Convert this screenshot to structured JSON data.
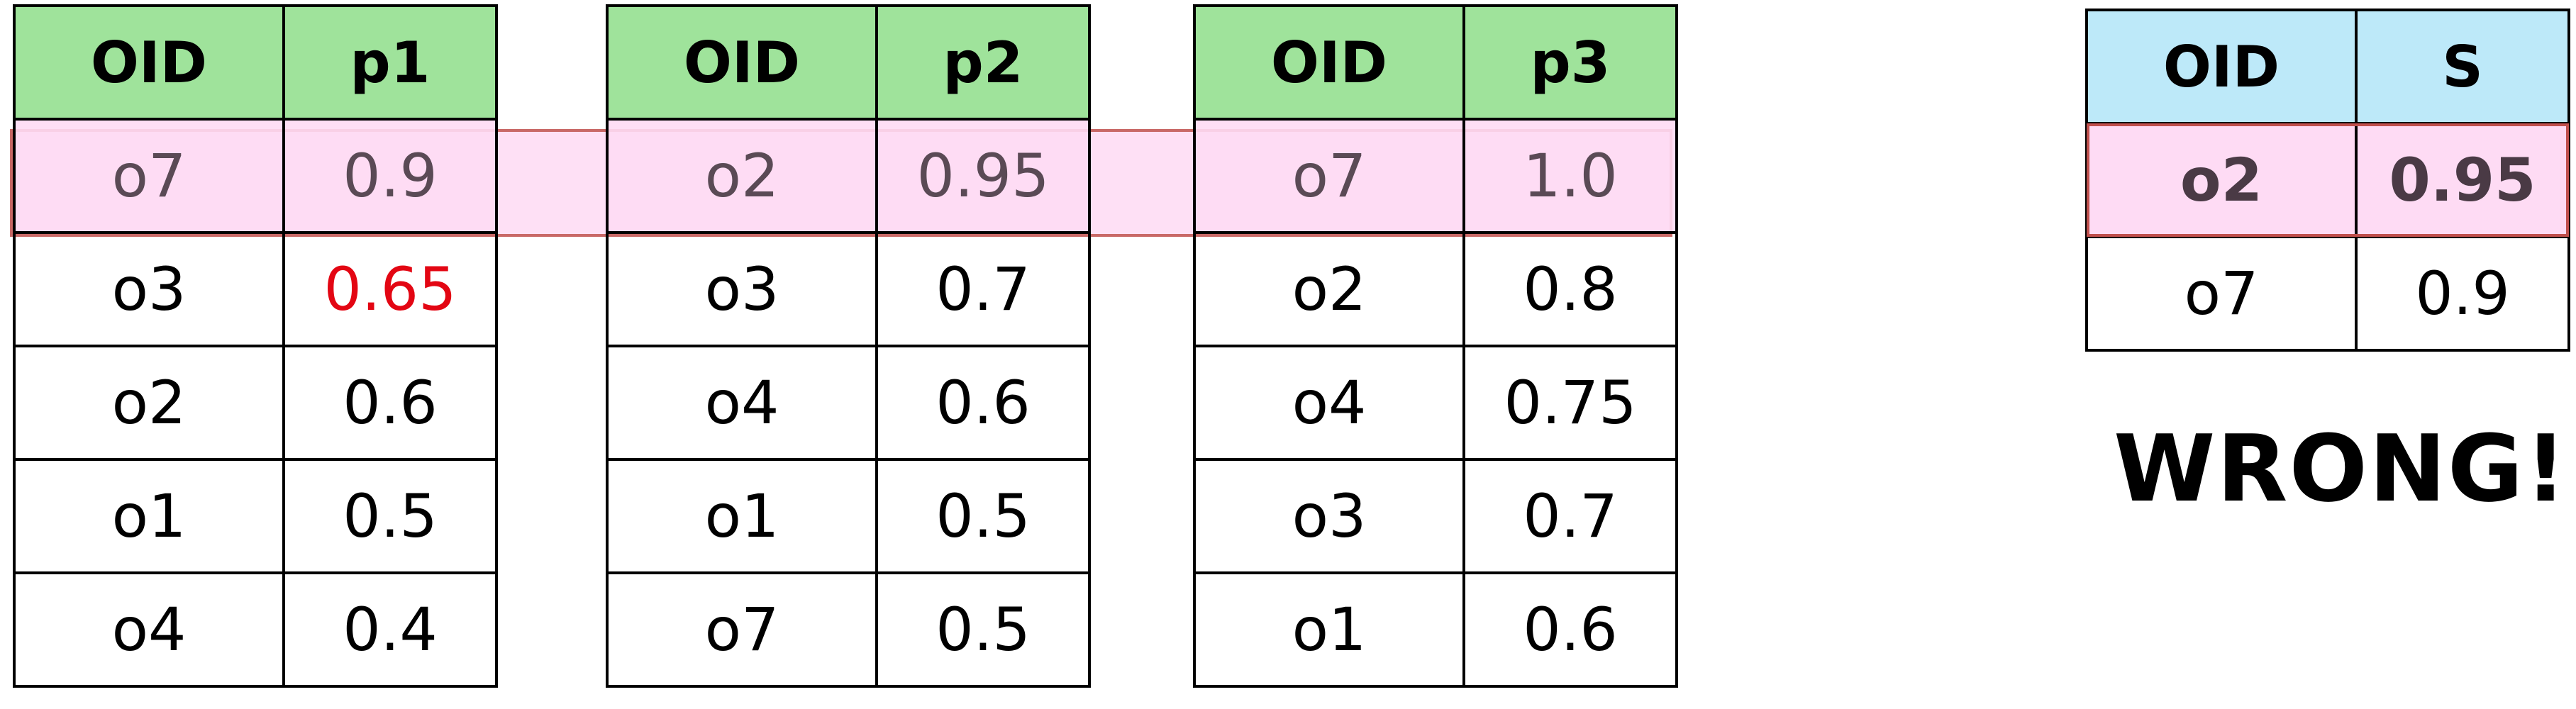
{
  "tables": [
    {
      "headers": [
        "OID",
        "p1"
      ],
      "rows": [
        [
          "o7",
          "0.9"
        ],
        [
          "o3",
          "0.65"
        ],
        [
          "o2",
          "0.6"
        ],
        [
          "o1",
          "0.5"
        ],
        [
          "o4",
          "0.4"
        ]
      ]
    },
    {
      "headers": [
        "OID",
        "p2"
      ],
      "rows": [
        [
          "o2",
          "0.95"
        ],
        [
          "o3",
          "0.7"
        ],
        [
          "o4",
          "0.6"
        ],
        [
          "o1",
          "0.5"
        ],
        [
          "o7",
          "0.5"
        ]
      ]
    },
    {
      "headers": [
        "OID",
        "p3"
      ],
      "rows": [
        [
          "o7",
          "1.0"
        ],
        [
          "o2",
          "0.8"
        ],
        [
          "o4",
          "0.75"
        ],
        [
          "o3",
          "0.7"
        ],
        [
          "o1",
          "0.6"
        ]
      ]
    }
  ],
  "result": {
    "headers": [
      "OID",
      "S"
    ],
    "rows": [
      [
        "o2",
        "0.95"
      ],
      [
        "o7",
        "0.9"
      ]
    ]
  },
  "verdict": "WRONG!!",
  "colors": {
    "input_header": "#9fe39b",
    "result_header": "#bde9f9",
    "highlight_fill": "#fedbf4",
    "highlight_border": "#c0504d",
    "emphasis_text": "#e30613"
  }
}
